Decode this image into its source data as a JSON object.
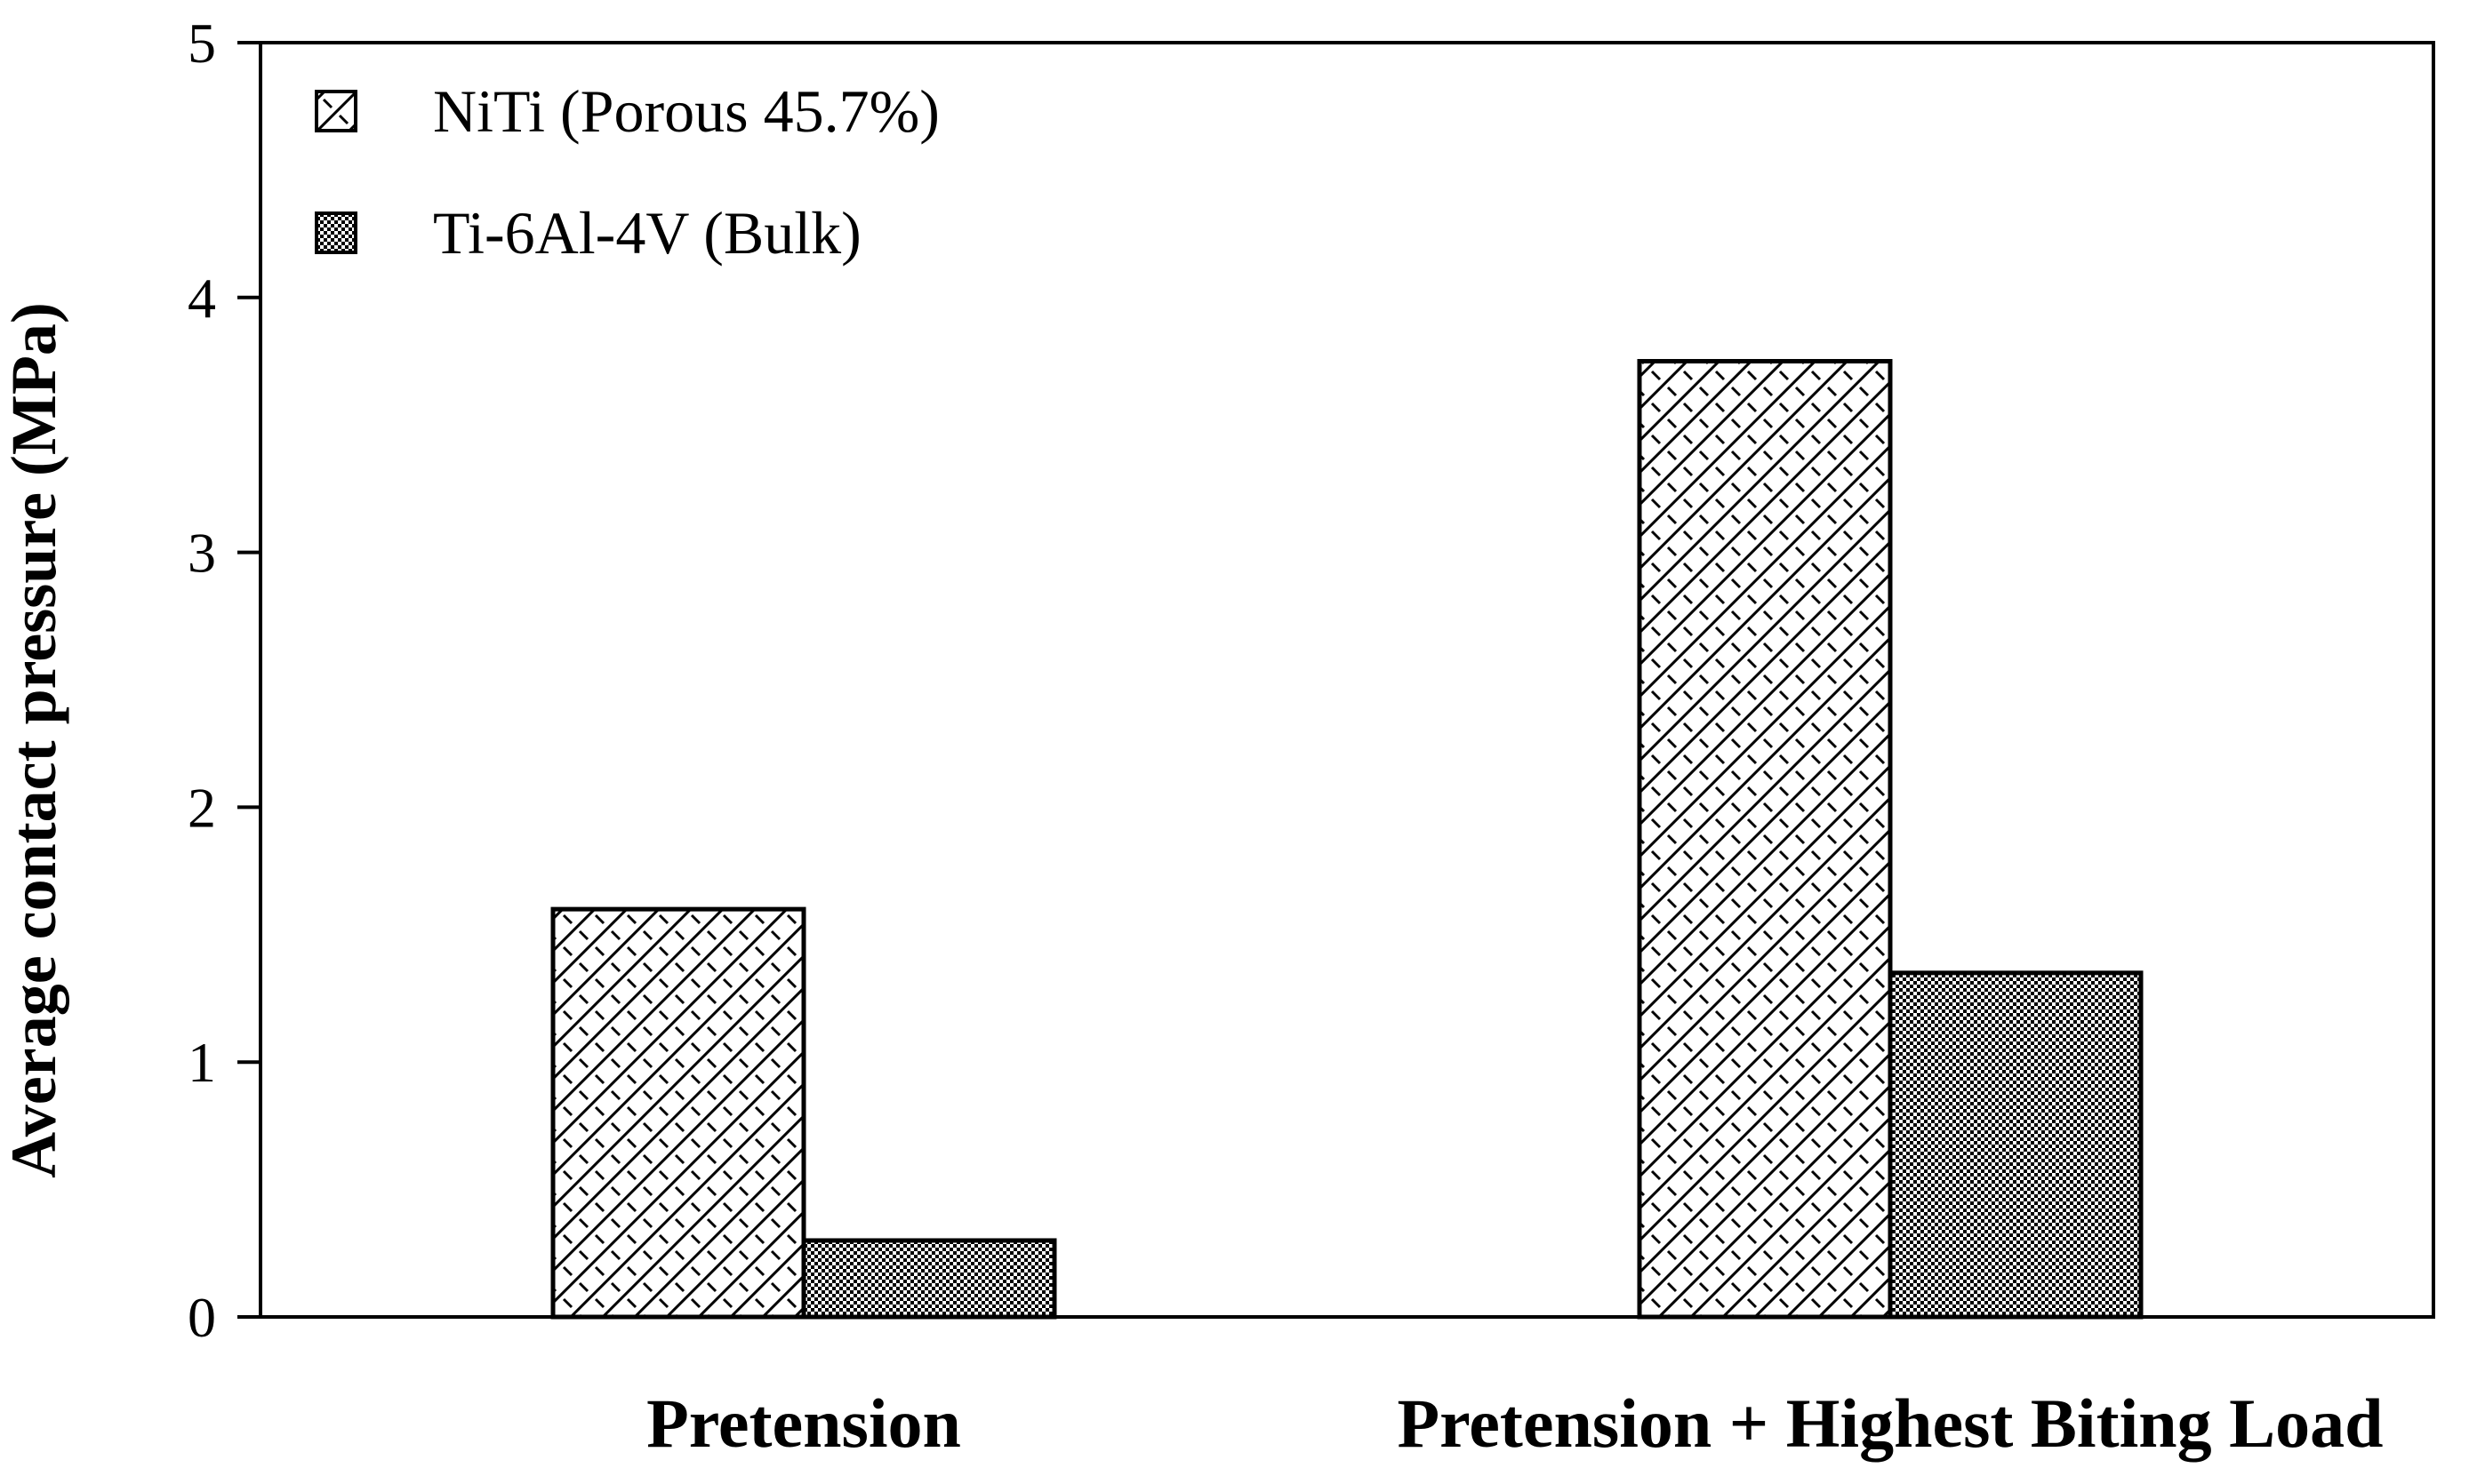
{
  "chart_data": {
    "type": "bar",
    "categories": [
      "Pretension",
      "Pretension + Highest Biting Load"
    ],
    "series": [
      {
        "name": "NiTi (Porous 45.7%)",
        "values": [
          1.6,
          3.75
        ],
        "pattern": "diagonal-hatch"
      },
      {
        "name": "Ti-6Al-4V (Bulk)",
        "values": [
          0.3,
          1.35
        ],
        "pattern": "dense-checker"
      }
    ],
    "title": "",
    "xlabel": "",
    "ylabel": "Average contact pressure (MPa)",
    "ylim": [
      0,
      5
    ],
    "yticks": [
      0,
      1,
      2,
      3,
      4,
      5
    ],
    "grid": false,
    "legend_position": "top-left"
  }
}
